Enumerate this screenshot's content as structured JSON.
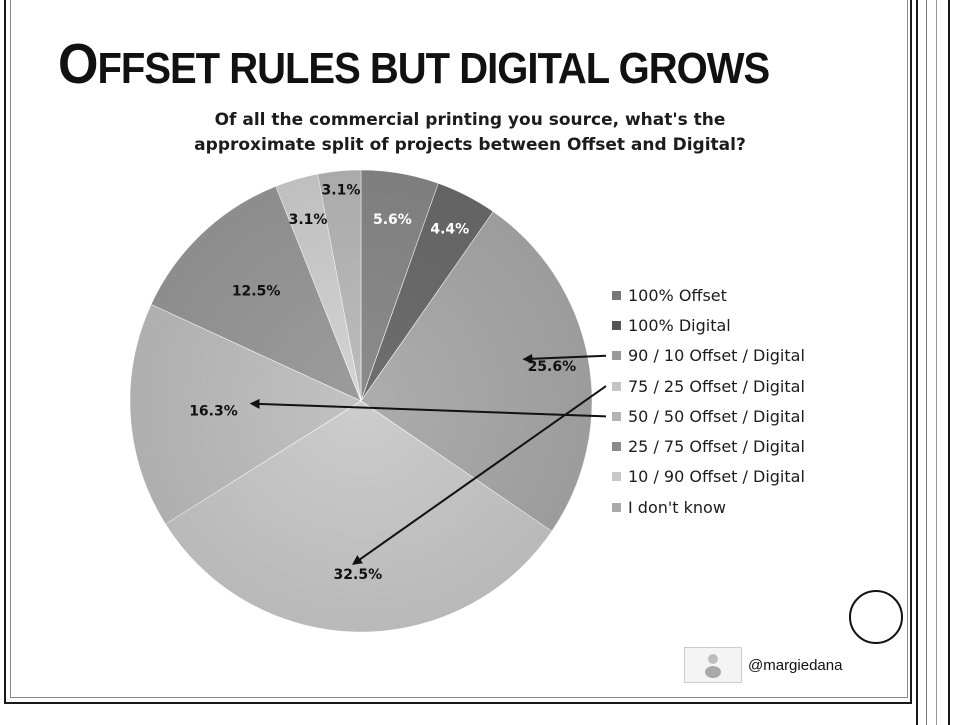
{
  "slide": {
    "title_first_letter": "O",
    "title_rest": "FFSET RULES BUT DIGITAL GROWS",
    "credit_handle": "@margiedana",
    "avatar_icon": "person-thumbnail-icon"
  },
  "chart_data": {
    "type": "pie",
    "title_lines": [
      "Of all the commercial printing you source, what's the",
      "approximate split of projects between Offset and Digital?"
    ],
    "legend_position": "right",
    "slices": [
      {
        "label": "100% Offset",
        "value": 5.6,
        "value_label": "5.6%",
        "color": "#8c8c8c",
        "label_color": "#ffffff"
      },
      {
        "label": "100% Digital",
        "value": 4.4,
        "value_label": "4.4%",
        "color": "#6e6e6e",
        "label_color": "#ffffff"
      },
      {
        "label": "90 / 10 Offset / Digital",
        "value": 25.6,
        "value_label": "25.6%",
        "color": "#adadad",
        "label_color": "#111111"
      },
      {
        "label": "75 / 25 Offset / Digital",
        "value": 32.5,
        "value_label": "32.5%",
        "color": "#cdcdcd",
        "label_color": "#111111"
      },
      {
        "label": "50 / 50 Offset / Digital",
        "value": 16.3,
        "value_label": "16.3%",
        "color": "#c2c2c2",
        "label_color": "#111111"
      },
      {
        "label": "25 / 75 Offset / Digital",
        "value": 12.5,
        "value_label": "12.5%",
        "color": "#9c9c9c",
        "label_color": "#111111"
      },
      {
        "label": "10 / 90 Offset / Digital",
        "value": 3.1,
        "value_label": "3.1%",
        "color": "#d4d4d4",
        "label_color": "#111111"
      },
      {
        "label": "I don't know",
        "value": 3.1,
        "value_label": "3.1%",
        "color": "#bdbdbd",
        "label_color": "#111111"
      }
    ],
    "legend_marker_colors": [
      "#777777",
      "#555555",
      "#999999",
      "#c4c4c4",
      "#b4b4b4",
      "#8a8a8a",
      "#c8c8c8",
      "#aaaaaa"
    ],
    "annotation_arrows": [
      {
        "from": "90 / 10 Offset / Digital",
        "to": "90 / 10 Offset / Digital"
      },
      {
        "from": "50 / 50 Offset / Digital",
        "to": "50 / 50 Offset / Digital"
      },
      {
        "from": "75 / 25 Offset / Digital",
        "to": "75 / 25 Offset / Digital"
      }
    ]
  }
}
